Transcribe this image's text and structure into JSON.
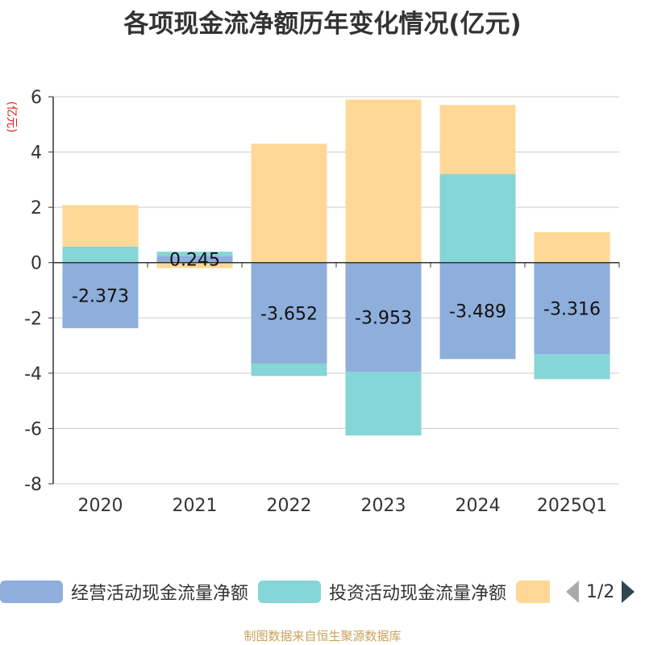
{
  "title": "各项现金流净额历年变化情况(亿元)",
  "unit_label": "(亿元)",
  "source": "制图数据来自恒生聚源数据库",
  "legend": {
    "items": [
      {
        "label": "经营活动现金流量净额",
        "color": "#8eaedb"
      },
      {
        "label": "投资活动现金流量净额",
        "color": "#86d5d7"
      },
      {
        "label": "",
        "color": "#ffd897"
      }
    ],
    "page": "1/2"
  },
  "chart_data": {
    "type": "bar",
    "stacked": true,
    "categories": [
      "2020",
      "2021",
      "2022",
      "2023",
      "2024",
      "2025Q1"
    ],
    "ylim": [
      -8,
      6
    ],
    "yticks": [
      6,
      4,
      2,
      0,
      -2,
      -4,
      -6,
      -8
    ],
    "ylabel": "(亿元)",
    "grid": true,
    "series": [
      {
        "name": "经营活动现金流量净额",
        "color": "#8eaedb",
        "values": [
          -2.373,
          0.245,
          -3.652,
          -3.953,
          -3.489,
          -3.316
        ],
        "labels": [
          "-2.373",
          "0.245",
          "-3.652",
          "-3.953",
          "-3.489",
          "-3.316"
        ]
      },
      {
        "name": "投资活动现金流量净额",
        "color": "#86d5d7",
        "values": [
          0.58,
          0.15,
          -0.45,
          -2.3,
          3.2,
          -0.9
        ]
      },
      {
        "name": "",
        "color": "#ffd897",
        "values": [
          1.5,
          -0.2,
          4.3,
          5.9,
          2.5,
          1.1
        ]
      }
    ]
  }
}
